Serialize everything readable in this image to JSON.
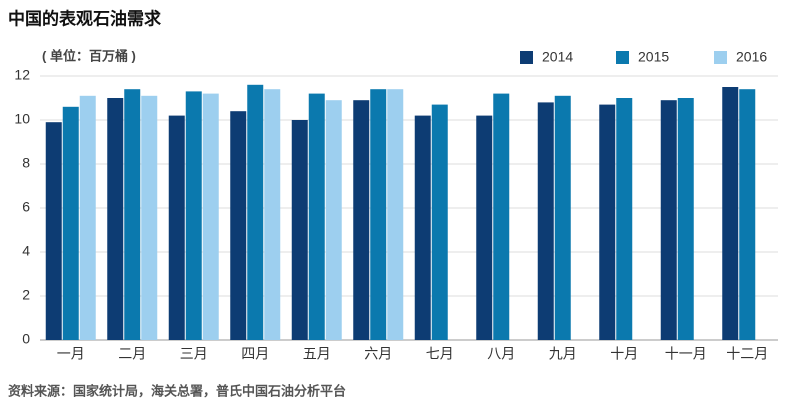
{
  "chart_data": {
    "type": "bar",
    "title": "中国的表观石油需求",
    "subtitle": "( 单位：百万桶 )",
    "source": "资料来源：国家统计局，海关总署，普氏中国石油分析平台",
    "categories": [
      "一月",
      "二月",
      "三月",
      "四月",
      "五月",
      "六月",
      "七月",
      "八月",
      "九月",
      "十月",
      "十一月",
      "十二月"
    ],
    "series": [
      {
        "name": "2014",
        "color": "#0d3c73",
        "values": [
          9.9,
          11.0,
          10.2,
          10.4,
          10.0,
          10.9,
          10.2,
          10.2,
          10.8,
          10.7,
          10.9,
          11.5
        ]
      },
      {
        "name": "2015",
        "color": "#0b79ae",
        "values": [
          10.6,
          11.4,
          11.3,
          11.6,
          11.2,
          11.4,
          10.7,
          11.2,
          11.1,
          11.0,
          11.0,
          11.4
        ]
      },
      {
        "name": "2016",
        "color": "#9dcfef",
        "values": [
          11.1,
          11.1,
          11.2,
          11.4,
          10.9,
          11.4,
          null,
          null,
          null,
          null,
          null,
          null
        ]
      }
    ],
    "ylim": [
      0,
      12
    ],
    "yticks": [
      0,
      2,
      4,
      6,
      8,
      10,
      12
    ],
    "grid": true
  }
}
